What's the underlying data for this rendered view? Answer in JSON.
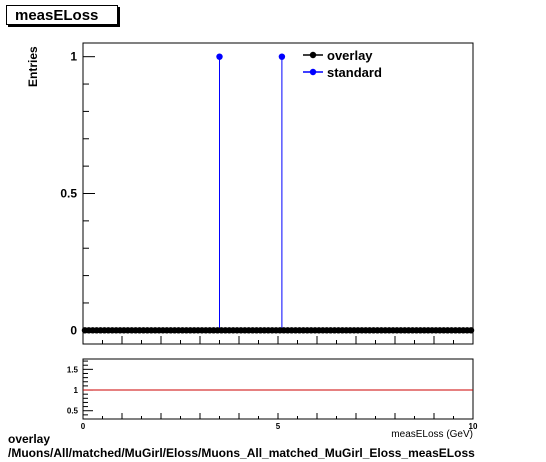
{
  "colors": {
    "overlay": "#000000",
    "standard": "#0000ff",
    "ratio_line": "#cc0000"
  },
  "chart_data": [
    {
      "type": "scatter",
      "title": "measELoss",
      "ylabel": "Entries",
      "xlabel": "",
      "xlim": [
        0,
        10
      ],
      "ylim": [
        -0.05,
        1.05
      ],
      "yticks": [
        0,
        0.5,
        1
      ],
      "ytick_labels": [
        "0",
        "0.5",
        "1"
      ],
      "grid": false,
      "legend_position": "top-right",
      "series": [
        {
          "name": "overlay",
          "style": "markers",
          "x": [
            0.05,
            0.15,
            0.25,
            0.35,
            0.45,
            0.55,
            0.65,
            0.75,
            0.85,
            0.95,
            1.05,
            1.15,
            1.25,
            1.35,
            1.45,
            1.55,
            1.65,
            1.75,
            1.85,
            1.95,
            2.05,
            2.15,
            2.25,
            2.35,
            2.45,
            2.55,
            2.65,
            2.75,
            2.85,
            2.95,
            3.05,
            3.15,
            3.25,
            3.35,
            3.45,
            3.55,
            3.65,
            3.75,
            3.85,
            3.95,
            4.05,
            4.15,
            4.25,
            4.35,
            4.45,
            4.55,
            4.65,
            4.75,
            4.85,
            4.95,
            5.05,
            5.15,
            5.25,
            5.35,
            5.45,
            5.55,
            5.65,
            5.75,
            5.85,
            5.95,
            6.05,
            6.15,
            6.25,
            6.35,
            6.45,
            6.55,
            6.65,
            6.75,
            6.85,
            6.95,
            7.05,
            7.15,
            7.25,
            7.35,
            7.45,
            7.55,
            7.65,
            7.75,
            7.85,
            7.95,
            8.05,
            8.15,
            8.25,
            8.35,
            8.45,
            8.55,
            8.65,
            8.75,
            8.85,
            8.95,
            9.05,
            9.15,
            9.25,
            9.35,
            9.45,
            9.55,
            9.65,
            9.75,
            9.85,
            9.95
          ],
          "y": [
            0,
            0,
            0,
            0,
            0,
            0,
            0,
            0,
            0,
            0,
            0,
            0,
            0,
            0,
            0,
            0,
            0,
            0,
            0,
            0,
            0,
            0,
            0,
            0,
            0,
            0,
            0,
            0,
            0,
            0,
            0,
            0,
            0,
            0,
            0,
            0,
            0,
            0,
            0,
            0,
            0,
            0,
            0,
            0,
            0,
            0,
            0,
            0,
            0,
            0,
            0,
            0,
            0,
            0,
            0,
            0,
            0,
            0,
            0,
            0,
            0,
            0,
            0,
            0,
            0,
            0,
            0,
            0,
            0,
            0,
            0,
            0,
            0,
            0,
            0,
            0,
            0,
            0,
            0,
            0,
            0,
            0,
            0,
            0,
            0,
            0,
            0,
            0,
            0,
            0,
            0,
            0,
            0,
            0,
            0,
            0,
            0,
            0,
            0,
            0
          ]
        },
        {
          "name": "standard",
          "style": "markers-with-drop-lines",
          "x": [
            3.5,
            5.1
          ],
          "y": [
            1,
            1
          ]
        }
      ]
    },
    {
      "type": "line",
      "title": "",
      "xlabel": "measELoss (GeV)",
      "ylabel": "",
      "xlim": [
        0,
        10
      ],
      "ylim": [
        0.3,
        1.75
      ],
      "xticks": [
        0,
        5,
        10
      ],
      "xtick_labels": [
        "0",
        "5",
        "10"
      ],
      "yticks": [
        0.5,
        1,
        1.5
      ],
      "ytick_labels": [
        "0.5",
        "1",
        "1.5"
      ],
      "grid": false,
      "series": [
        {
          "name": "",
          "x": [
            0,
            10
          ],
          "y": [
            1,
            1
          ]
        }
      ]
    }
  ],
  "footer": {
    "line1": "overlay",
    "line2": "/Muons/All/matched/MuGirl/Eloss/Muons_All_matched_MuGirl_Eloss_measELoss"
  }
}
